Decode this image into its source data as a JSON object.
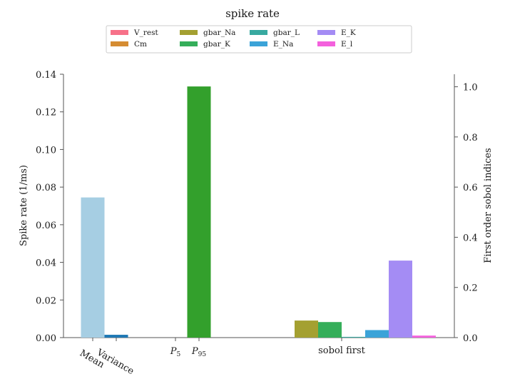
{
  "chart_data": {
    "type": "bar",
    "title": "spike rate",
    "ylabel_left": "Spike rate (1/ms)",
    "ylabel_right": "First order sobol indices",
    "ylim_left": [
      0,
      0.14
    ],
    "ylim_right": [
      0,
      1.05
    ],
    "left_ticks": [
      "0.00",
      "0.02",
      "0.04",
      "0.06",
      "0.08",
      "0.10",
      "0.12",
      "0.14"
    ],
    "right_ticks": [
      "0.0",
      "0.2",
      "0.4",
      "0.6",
      "0.8",
      "1.0"
    ],
    "grid": false,
    "legend_position": "top-center",
    "categories": [
      {
        "label": "Mean",
        "rotated": true
      },
      {
        "label": "Variance",
        "rotated": true
      },
      {
        "label": "P",
        "sub": "5",
        "rotated": false
      },
      {
        "label": "P",
        "sub": "95",
        "rotated": false
      },
      {
        "label": "sobol first",
        "rotated": false
      }
    ],
    "statistic_bars": [
      {
        "category": "Mean",
        "value": 0.0745,
        "color": "#a6cee3"
      },
      {
        "category": "Variance",
        "value": 0.0015,
        "color": "#1f78b4"
      },
      {
        "category": "P5",
        "value": 0.0,
        "color": "#b2df8a"
      },
      {
        "category": "P95",
        "value": 0.1335,
        "color": "#33a02c"
      }
    ],
    "sobol_first": [
      {
        "name": "V_rest",
        "value": 0.0,
        "color": "#f77189"
      },
      {
        "name": "Cm",
        "value": 0.0,
        "color": "#d58c32"
      },
      {
        "name": "gbar_Na",
        "value": 0.068,
        "color": "#a4a031"
      },
      {
        "name": "gbar_K",
        "value": 0.062,
        "color": "#35ae5a"
      },
      {
        "name": "gbar_L",
        "value": 0.003,
        "color": "#38a9a0"
      },
      {
        "name": "E_Na",
        "value": 0.03,
        "color": "#3ba3d8"
      },
      {
        "name": "E_K",
        "value": 0.307,
        "color": "#a48cf4"
      },
      {
        "name": "E_l",
        "value": 0.008,
        "color": "#f461dd"
      }
    ]
  }
}
